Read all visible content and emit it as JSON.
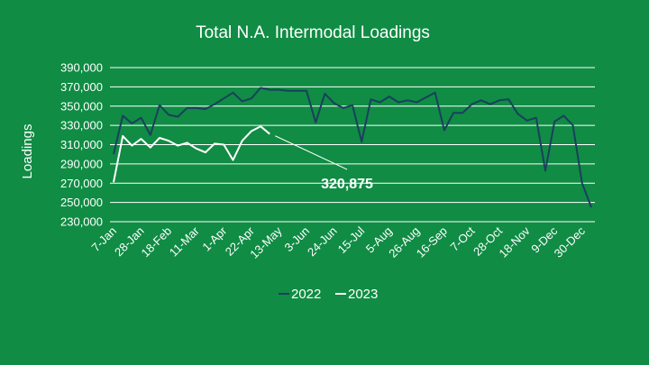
{
  "chart_data": {
    "type": "line",
    "title": "Total N.A. Intermodal Loadings",
    "ylabel": "Loadings",
    "xlabel": "",
    "ylim": [
      230000,
      390000
    ],
    "yticks": [
      390000,
      370000,
      350000,
      330000,
      310000,
      290000,
      270000,
      250000,
      230000
    ],
    "ytick_labels": [
      "390,000",
      "370,000",
      "350,000",
      "330,000",
      "310,000",
      "290,000",
      "270,000",
      "250,000",
      "230,000"
    ],
    "xtick_labels": [
      "7-Jan",
      "28-Jan",
      "18-Feb",
      "11-Mar",
      "1-Apr",
      "22-Apr",
      "13-May",
      "3-Jun",
      "24-Jun",
      "15-Jul",
      "5-Aug",
      "26-Aug",
      "16-Sep",
      "7-Oct",
      "28-Oct",
      "18-Nov",
      "9-Dec",
      "30-Dec"
    ],
    "grid": true,
    "legend_position": "bottom",
    "series": [
      {
        "name": "2022",
        "color": "#1b3f5e",
        "values": [
          300000,
          340000,
          332000,
          338000,
          320000,
          351000,
          341000,
          339000,
          348000,
          348000,
          347000,
          352000,
          358000,
          364000,
          355000,
          358000,
          369000,
          367000,
          367000,
          366000,
          366000,
          366000,
          333000,
          363000,
          353000,
          348000,
          351000,
          313000,
          357000,
          354000,
          360000,
          354000,
          356000,
          354000,
          359000,
          364000,
          325000,
          343000,
          343000,
          352000,
          356000,
          352000,
          356000,
          357000,
          342000,
          335000,
          338000,
          283000,
          334000,
          340000,
          330000,
          270000,
          245000
        ]
      },
      {
        "name": "2023",
        "color": "#ffffff",
        "values": [
          271000,
          319000,
          309000,
          316000,
          307000,
          317000,
          314000,
          309000,
          312000,
          306000,
          302000,
          311000,
          310000,
          294000,
          314000,
          324000,
          329000,
          321000
        ]
      }
    ],
    "annotations": [
      {
        "text": "320,875",
        "series": "2023",
        "index": 17
      }
    ]
  }
}
